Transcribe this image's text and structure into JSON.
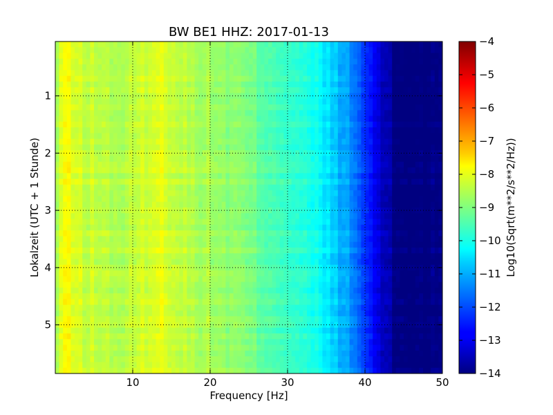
{
  "chart_data": {
    "type": "heatmap",
    "title": "BW BE1 HHZ: 2017-01-13",
    "xlabel": "Frequency [Hz]",
    "ylabel": "Lokalzeit (UTC + 1 Stunde)",
    "colorbar_label": "Log10(Sqrt(m**2/s**2/Hz))",
    "colormap": "jet",
    "xlim": [
      0,
      50
    ],
    "ylim": [
      5.85,
      0.05
    ],
    "y_inverted": true,
    "clim": [
      -14,
      -4
    ],
    "grid": true,
    "xticks": [
      10,
      20,
      30,
      40,
      50
    ],
    "xtick_labels": [
      "10",
      "20",
      "30",
      "40",
      "50"
    ],
    "yticks": [
      1,
      2,
      3,
      4,
      5
    ],
    "ytick_labels": [
      "1",
      "2",
      "3",
      "4",
      "5"
    ],
    "colorbar_ticks": [
      -4,
      -5,
      -6,
      -7,
      -8,
      -9,
      -10,
      -11,
      -12,
      -13,
      -14
    ],
    "colorbar_tick_labels": [
      "−4",
      "−5",
      "−6",
      "−7",
      "−8",
      "−9",
      "−10",
      "−11",
      "−12",
      "−13",
      "−14"
    ],
    "frequency_profile": {
      "frequency_hz": [
        0,
        1,
        3,
        5,
        8,
        10,
        12,
        14,
        16,
        18,
        20,
        22,
        24,
        26,
        28,
        30,
        32,
        34,
        36,
        38,
        40,
        42,
        44,
        46,
        50
      ],
      "log10_amplitude": [
        -8.9,
        -7.7,
        -8.2,
        -8.3,
        -8.5,
        -8.4,
        -8.1,
        -8.0,
        -8.3,
        -8.5,
        -8.6,
        -8.8,
        -8.9,
        -9.2,
        -9.4,
        -9.6,
        -9.9,
        -10.2,
        -10.7,
        -11.3,
        -12.2,
        -13.2,
        -14.0,
        -14.0,
        -14.0
      ]
    }
  }
}
